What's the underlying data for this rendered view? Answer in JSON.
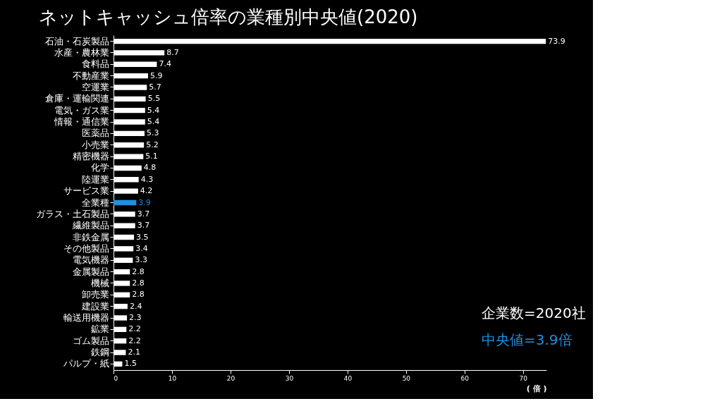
{
  "chart_data": {
    "type": "bar",
    "orientation": "horizontal",
    "title": "ネットキャッシュ倍率の業種別中央値(2020)",
    "xlabel": "( 倍 )",
    "categories": [
      "石油・石炭製品",
      "水産・農林業",
      "食料品",
      "不動産業",
      "空運業",
      "倉庫・運輸関連",
      "電気・ガス業",
      "情報・通信業",
      "医薬品",
      "小売業",
      "精密機器",
      "化学",
      "陸運業",
      "サービス業",
      "全業種",
      "ガラス・土石製品",
      "繊維製品",
      "非鉄金属",
      "その他製品",
      "電気機器",
      "金属製品",
      "機械",
      "卸売業",
      "建設業",
      "輸送用機器",
      "鉱業",
      "ゴム製品",
      "鉄鋼",
      "パルプ・紙"
    ],
    "values": [
      73.9,
      8.7,
      7.4,
      5.9,
      5.7,
      5.5,
      5.4,
      5.4,
      5.3,
      5.2,
      5.1,
      4.8,
      4.3,
      4.2,
      3.9,
      3.7,
      3.7,
      3.5,
      3.4,
      3.3,
      2.8,
      2.8,
      2.8,
      2.4,
      2.3,
      2.2,
      2.2,
      2.1,
      1.5
    ],
    "colors": [
      "#ffffff",
      "#ffffff",
      "#ffffff",
      "#ffffff",
      "#ffffff",
      "#ffffff",
      "#ffffff",
      "#ffffff",
      "#ffffff",
      "#ffffff",
      "#ffffff",
      "#ffffff",
      "#ffffff",
      "#ffffff",
      "#1e90e0",
      "#ffffff",
      "#ffffff",
      "#ffffff",
      "#ffffff",
      "#ffffff",
      "#ffffff",
      "#ffffff",
      "#ffffff",
      "#ffffff",
      "#ffffff",
      "#ffffff",
      "#ffffff",
      "#ffffff",
      "#ffffff"
    ],
    "xlim": [
      0,
      74
    ],
    "xticks": [
      0,
      10,
      20,
      30,
      40,
      50,
      60,
      70
    ],
    "data_labels": true,
    "grid": false,
    "annotations": [
      "企業数=2020社",
      "中央値=3.9倍"
    ]
  }
}
